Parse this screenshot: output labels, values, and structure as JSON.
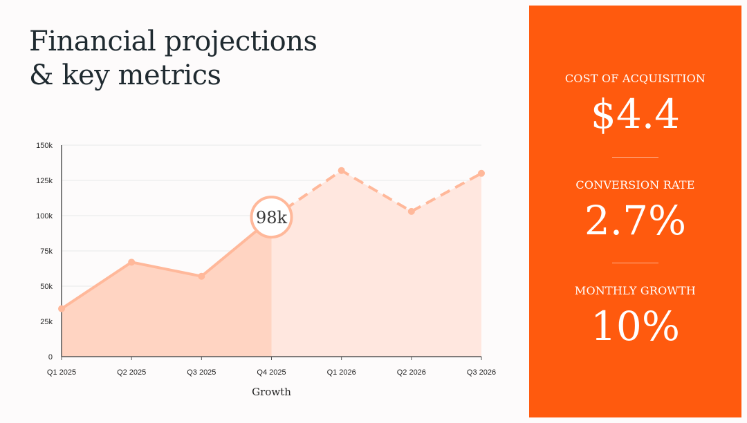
{
  "title": {
    "line1": "Financial projections",
    "line2": "& key metrics"
  },
  "chart_data": {
    "type": "area",
    "title": "Financial projections & key metrics",
    "xlabel": "Growth",
    "ylabel": "",
    "categories": [
      "Q1 2025",
      "Q2 2025",
      "Q3 2025",
      "Q4 2025",
      "Q1 2026",
      "Q2 2026",
      "Q3 2026"
    ],
    "values": [
      34000,
      67000,
      57000,
      98000,
      132000,
      103000,
      130000
    ],
    "actual_through_index": 3,
    "ylim": [
      0,
      150000
    ],
    "yticks": [
      0,
      25000,
      50000,
      75000,
      100000,
      125000,
      150000
    ],
    "ytick_labels": [
      "0",
      "25k",
      "50k",
      "75k",
      "100k",
      "125k",
      "150k"
    ],
    "grid": true,
    "annotations": [
      {
        "category": "Q4 2025",
        "value": 98000,
        "text": "98k"
      }
    ],
    "colors": {
      "line": "#ffb89a",
      "fill_actual": "#ffd4c2",
      "fill_projected": "#ffe7df",
      "grid": "#e8e8e8",
      "axis": "#555555"
    }
  },
  "metrics": [
    {
      "label": "COST OF ACQUISITION",
      "value": "$4.4"
    },
    {
      "label": "CONVERSION RATE",
      "value": "2.7%"
    },
    {
      "label": "MONTHLY GROWTH",
      "value": "10%"
    }
  ],
  "colors": {
    "panel": "#ff5a0e",
    "title": "#1f2a30"
  }
}
